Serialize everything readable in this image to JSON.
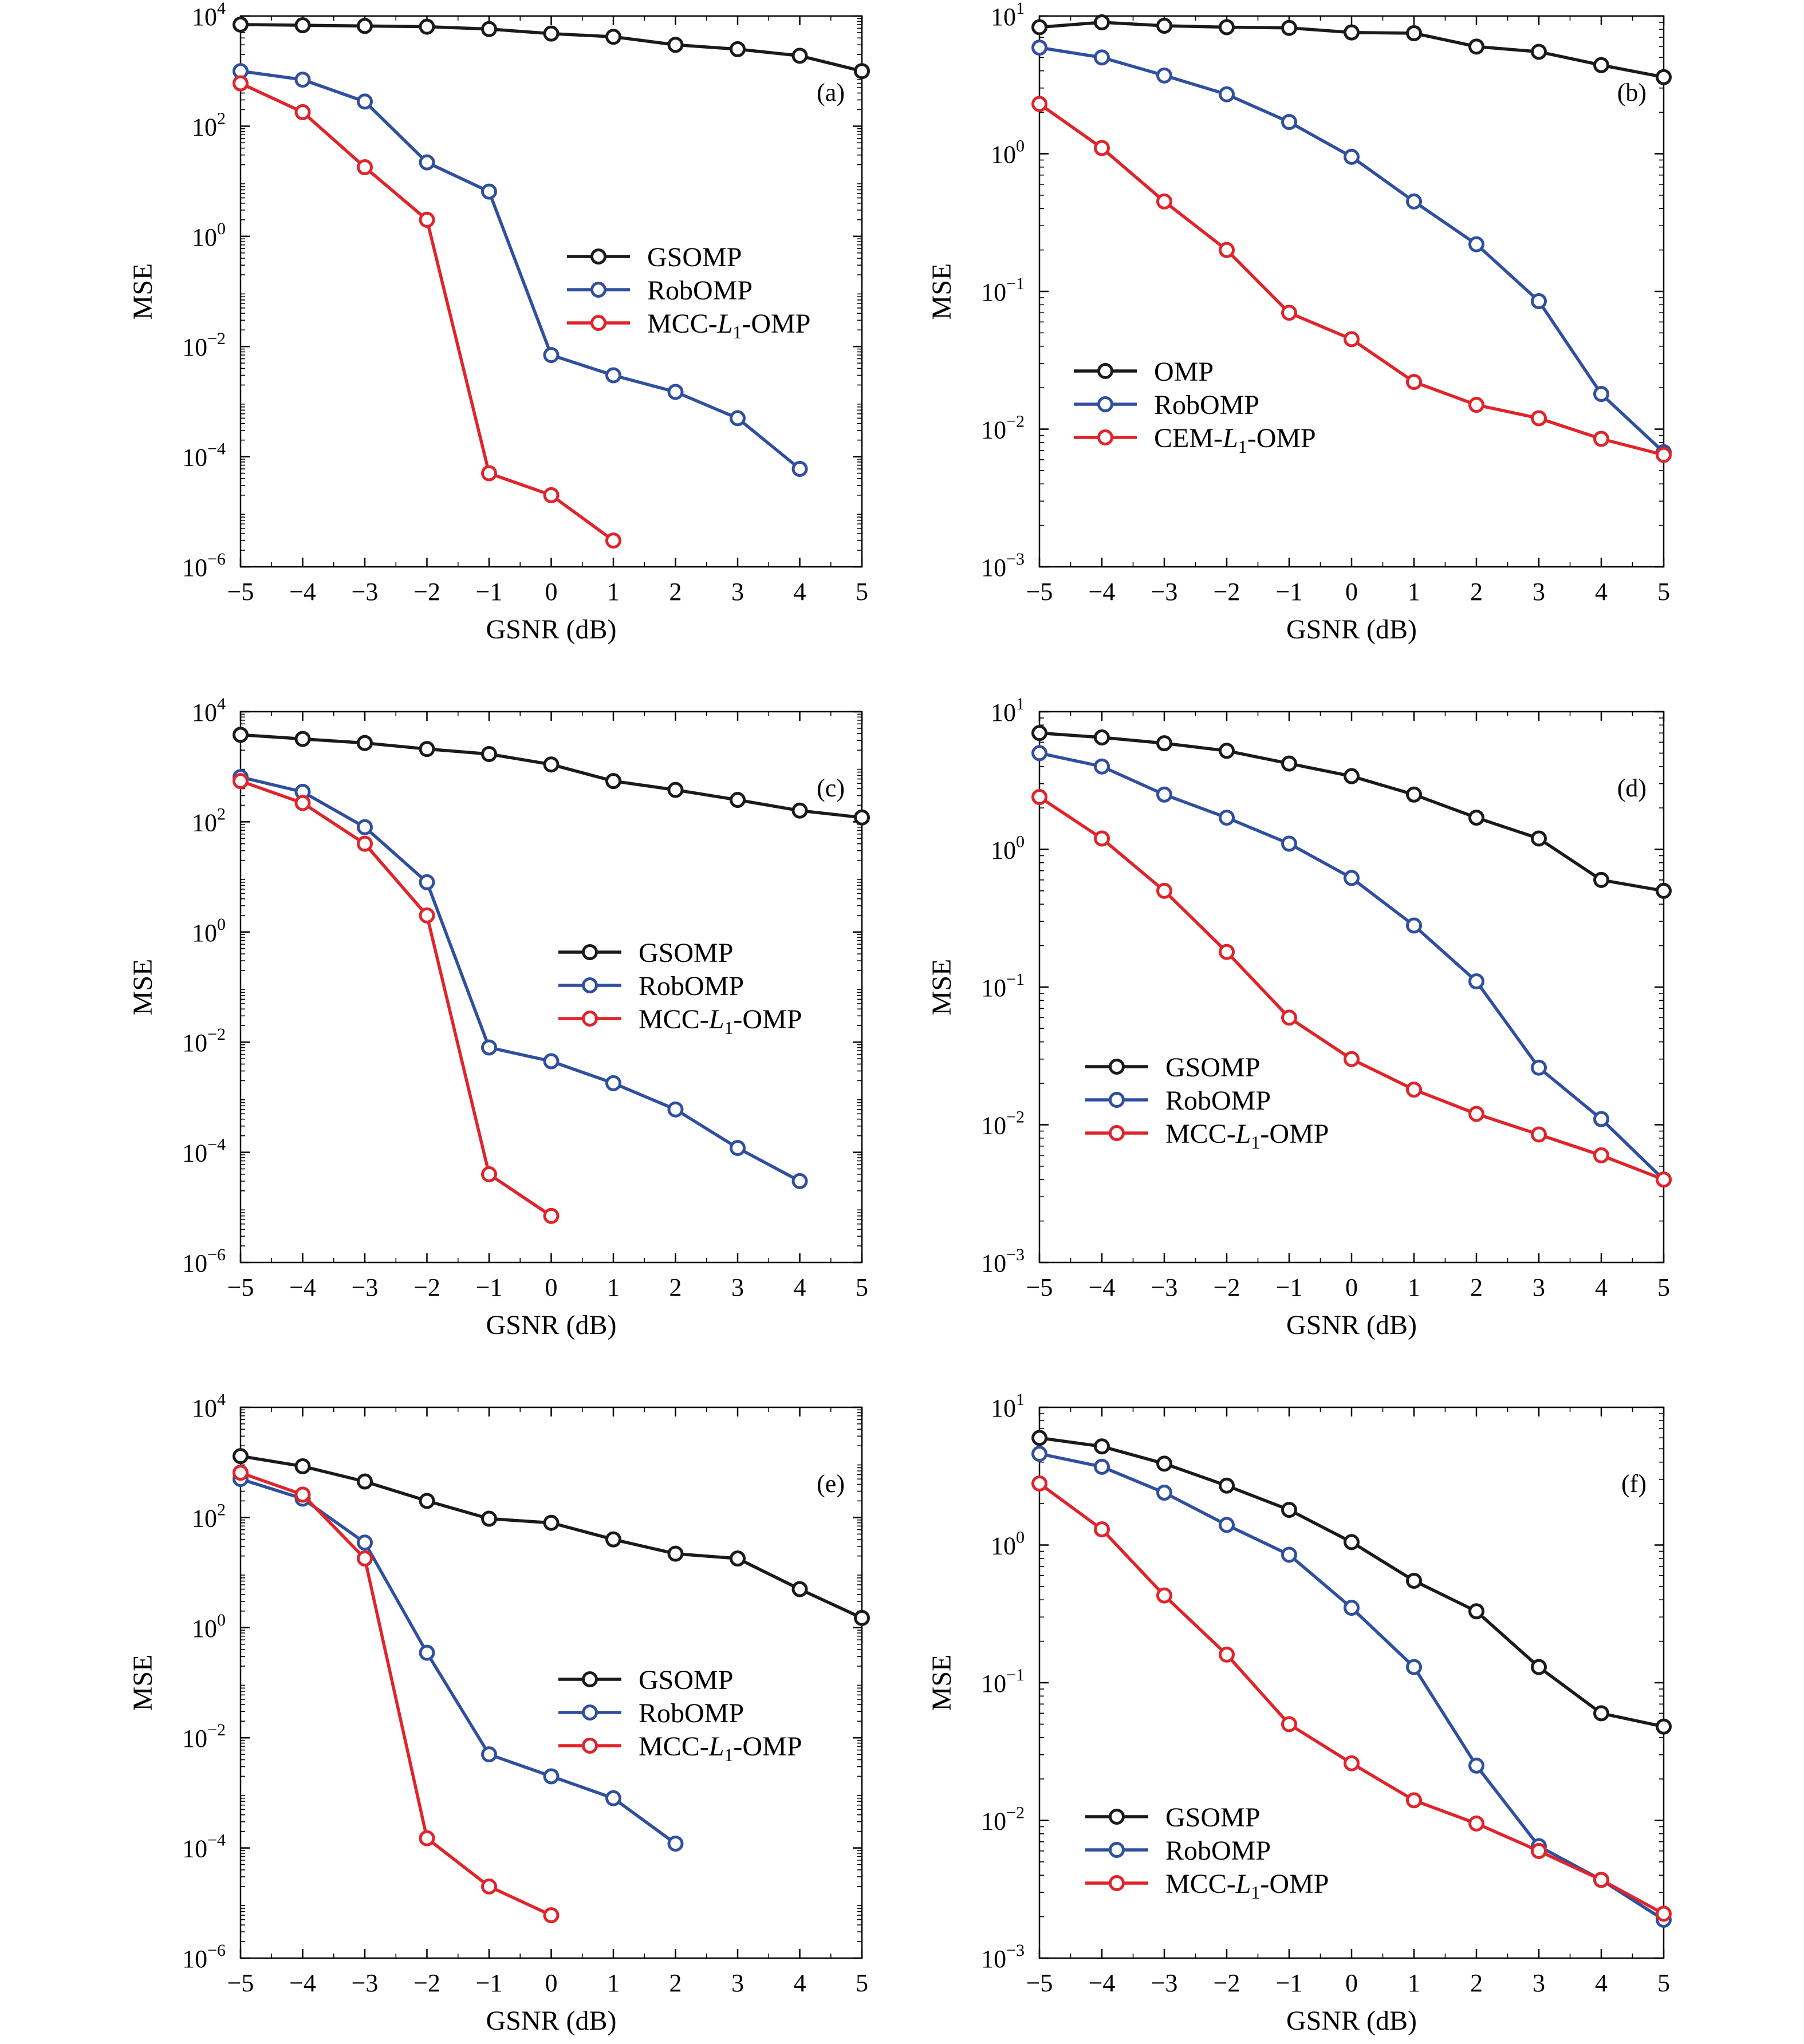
{
  "colors": {
    "black": "#1a1a1a",
    "blue": "#2f4f9f",
    "red": "#e0242a"
  },
  "chart_data": [
    {
      "type": "line",
      "panel": "(a)",
      "xlabel": "GSNR (dB)",
      "ylabel": "MSE",
      "yscale": "log",
      "ylim_exp": [
        -6,
        4
      ],
      "ytick_exps": [
        -6,
        -4,
        -2,
        0,
        2,
        4
      ],
      "xlim": [
        -5,
        5
      ],
      "xticks": [
        "−5",
        "−4",
        "−3",
        "−2",
        "−1",
        "0",
        "1",
        "2",
        "3",
        "4",
        "5"
      ],
      "legend_position": "center-right",
      "series": [
        {
          "name": "GSOMP",
          "sub": "",
          "color": "black",
          "x": [
            -5,
            -4,
            -3,
            -2,
            -1,
            0,
            1,
            2,
            3,
            4,
            5
          ],
          "y": [
            7000,
            6800,
            6600,
            6400,
            5800,
            4800,
            4200,
            3000,
            2500,
            1900,
            1000
          ]
        },
        {
          "name": "RobOMP",
          "sub": "",
          "color": "blue",
          "x": [
            -5,
            -4,
            -3,
            -2,
            -1,
            0,
            1,
            2,
            3,
            4
          ],
          "y": [
            1000,
            700,
            280,
            22,
            6.5,
            0.007,
            0.003,
            0.0015,
            0.0005,
            6e-05
          ]
        },
        {
          "name": "MCC-",
          "italic": "L",
          "sub": "1",
          "suffix": "-OMP",
          "color": "red",
          "x": [
            -5,
            -4,
            -3,
            -2,
            -1,
            0,
            1
          ],
          "y": [
            600,
            180,
            18,
            2,
            5e-05,
            2e-05,
            3e-06
          ]
        }
      ]
    },
    {
      "type": "line",
      "panel": "(b)",
      "xlabel": "GSNR (dB)",
      "ylabel": "MSE",
      "yscale": "log",
      "ylim_exp": [
        -3,
        1
      ],
      "ytick_exps": [
        -3,
        -2,
        -1,
        0,
        1
      ],
      "xlim": [
        -5,
        5
      ],
      "xticks": [
        "−5",
        "−4",
        "−3",
        "−2",
        "−1",
        "0",
        "1",
        "2",
        "3",
        "4",
        "5"
      ],
      "legend_position": "lower-left",
      "series": [
        {
          "name": "OMP",
          "sub": "",
          "color": "black",
          "x": [
            -5,
            -4,
            -3,
            -2,
            -1,
            0,
            1,
            2,
            3,
            4,
            5
          ],
          "y": [
            8.3,
            9.0,
            8.5,
            8.3,
            8.2,
            7.6,
            7.5,
            6.0,
            5.5,
            4.4,
            3.6
          ]
        },
        {
          "name": "RobOMP",
          "sub": "",
          "color": "blue",
          "x": [
            -5,
            -4,
            -3,
            -2,
            -1,
            0,
            1,
            2,
            3,
            4,
            5
          ],
          "y": [
            5.9,
            5.0,
            3.7,
            2.7,
            1.7,
            0.95,
            0.45,
            0.22,
            0.085,
            0.018,
            0.0068
          ]
        },
        {
          "name": "CEM-",
          "italic": "L",
          "sub": "1",
          "suffix": "-OMP",
          "color": "red",
          "x": [
            -5,
            -4,
            -3,
            -2,
            -1,
            0,
            1,
            2,
            3,
            4,
            5
          ],
          "y": [
            2.3,
            1.1,
            0.45,
            0.2,
            0.07,
            0.045,
            0.022,
            0.015,
            0.012,
            0.0085,
            0.0065
          ]
        }
      ]
    },
    {
      "type": "line",
      "panel": "(c)",
      "xlabel": "GSNR (dB)",
      "ylabel": "MSE",
      "yscale": "log",
      "ylim_exp": [
        -6,
        4
      ],
      "ytick_exps": [
        -6,
        -4,
        -2,
        0,
        2,
        4
      ],
      "xlim": [
        -5,
        5
      ],
      "xticks": [
        "−5",
        "−4",
        "−3",
        "−2",
        "−1",
        "0",
        "1",
        "2",
        "3",
        "4",
        "5"
      ],
      "legend_position": "center-right",
      "series": [
        {
          "name": "GSOMP",
          "sub": "",
          "color": "black",
          "x": [
            -5,
            -4,
            -3,
            -2,
            -1,
            0,
            1,
            2,
            3,
            4,
            5
          ],
          "y": [
            3800,
            3200,
            2700,
            2100,
            1700,
            1100,
            550,
            380,
            250,
            160,
            120
          ]
        },
        {
          "name": "RobOMP",
          "sub": "",
          "color": "blue",
          "x": [
            -5,
            -4,
            -3,
            -2,
            -1,
            0,
            1,
            2,
            3,
            4
          ],
          "y": [
            650,
            350,
            80,
            8,
            0.008,
            0.0045,
            0.0018,
            0.0006,
            0.00012,
            3e-05
          ]
        },
        {
          "name": "MCC-",
          "italic": "L",
          "sub": "1",
          "suffix": "-OMP",
          "color": "red",
          "x": [
            -5,
            -4,
            -3,
            -2,
            -1,
            0
          ],
          "y": [
            550,
            220,
            40,
            2,
            4e-05,
            7e-06
          ]
        }
      ]
    },
    {
      "type": "line",
      "panel": "(d)",
      "xlabel": "GSNR (dB)",
      "ylabel": "MSE",
      "yscale": "log",
      "ylim_exp": [
        -3,
        1
      ],
      "ytick_exps": [
        -3,
        -2,
        -1,
        0,
        1
      ],
      "xlim": [
        -5,
        5
      ],
      "xticks": [
        "−5",
        "−4",
        "−3",
        "−2",
        "−1",
        "0",
        "1",
        "2",
        "3",
        "4",
        "5"
      ],
      "legend_position": "lower-left",
      "series": [
        {
          "name": "GSOMP",
          "sub": "",
          "color": "black",
          "x": [
            -5,
            -4,
            -3,
            -2,
            -1,
            0,
            1,
            2,
            3,
            4,
            5
          ],
          "y": [
            7.0,
            6.5,
            5.9,
            5.2,
            4.2,
            3.4,
            2.5,
            1.7,
            1.2,
            0.6,
            0.5
          ]
        },
        {
          "name": "RobOMP",
          "sub": "",
          "color": "blue",
          "x": [
            -5,
            -4,
            -3,
            -2,
            -1,
            0,
            1,
            2,
            3,
            4,
            5
          ],
          "y": [
            5.0,
            4.0,
            2.5,
            1.7,
            1.1,
            0.62,
            0.28,
            0.11,
            0.026,
            0.011,
            0.004
          ]
        },
        {
          "name": "MCC-",
          "italic": "L",
          "sub": "1",
          "suffix": "-OMP",
          "color": "red",
          "x": [
            -5,
            -4,
            -3,
            -2,
            -1,
            0,
            1,
            2,
            3,
            4,
            5
          ],
          "y": [
            2.4,
            1.2,
            0.5,
            0.18,
            0.06,
            0.03,
            0.018,
            0.012,
            0.0085,
            0.006,
            0.004
          ]
        }
      ]
    },
    {
      "type": "line",
      "panel": "(e)",
      "xlabel": "GSNR (dB)",
      "ylabel": "MSE",
      "yscale": "log",
      "ylim_exp": [
        -6,
        4
      ],
      "ytick_exps": [
        -6,
        -4,
        -2,
        0,
        2,
        4
      ],
      "xlim": [
        -5,
        5
      ],
      "xticks": [
        "−5",
        "−4",
        "−3",
        "−2",
        "−1",
        "0",
        "1",
        "2",
        "3",
        "4",
        "5"
      ],
      "legend_position": "center-right",
      "series": [
        {
          "name": "GSOMP",
          "sub": "",
          "color": "black",
          "x": [
            -5,
            -4,
            -3,
            -2,
            -1,
            0,
            1,
            2,
            3,
            4,
            5
          ],
          "y": [
            1300,
            850,
            450,
            200,
            95,
            80,
            40,
            22,
            18,
            5,
            1.5
          ]
        },
        {
          "name": "RobOMP",
          "sub": "",
          "color": "blue",
          "x": [
            -5,
            -4,
            -3,
            -2,
            -1,
            0,
            1,
            2
          ],
          "y": [
            500,
            220,
            35,
            0.35,
            0.005,
            0.002,
            0.0008,
            0.00012
          ]
        },
        {
          "name": "MCC-",
          "italic": "L",
          "sub": "1",
          "suffix": "-OMP",
          "color": "red",
          "x": [
            -5,
            -4,
            -3,
            -2,
            -1,
            0
          ],
          "y": [
            650,
            260,
            18,
            0.00015,
            2e-05,
            6e-06
          ]
        }
      ]
    },
    {
      "type": "line",
      "panel": "(f)",
      "xlabel": "GSNR (dB)",
      "ylabel": "MSE",
      "yscale": "log",
      "ylim_exp": [
        -3,
        1
      ],
      "ytick_exps": [
        -3,
        -2,
        -1,
        0,
        1
      ],
      "xlim": [
        -5,
        5
      ],
      "xticks": [
        "−5",
        "−4",
        "−3",
        "−2",
        "−1",
        "0",
        "1",
        "2",
        "3",
        "4",
        "5"
      ],
      "legend_position": "lower-left",
      "series": [
        {
          "name": "GSOMP",
          "sub": "",
          "color": "black",
          "x": [
            -5,
            -4,
            -3,
            -2,
            -1,
            0,
            1,
            2,
            3,
            4,
            5
          ],
          "y": [
            6.0,
            5.2,
            3.9,
            2.7,
            1.8,
            1.05,
            0.55,
            0.33,
            0.13,
            0.06,
            0.048
          ]
        },
        {
          "name": "RobOMP",
          "sub": "",
          "color": "blue",
          "x": [
            -5,
            -4,
            -3,
            -2,
            -1,
            0,
            1,
            2,
            3,
            4,
            5
          ],
          "y": [
            4.6,
            3.7,
            2.4,
            1.4,
            0.85,
            0.35,
            0.13,
            0.025,
            0.0065,
            0.0037,
            0.0019
          ]
        },
        {
          "name": "MCC-",
          "italic": "L",
          "sub": "1",
          "suffix": "-OMP",
          "color": "red",
          "x": [
            -5,
            -4,
            -3,
            -2,
            -1,
            0,
            1,
            2,
            3,
            4,
            5
          ],
          "y": [
            2.8,
            1.3,
            0.43,
            0.16,
            0.05,
            0.026,
            0.014,
            0.0095,
            0.006,
            0.0037,
            0.0021
          ]
        }
      ]
    }
  ]
}
